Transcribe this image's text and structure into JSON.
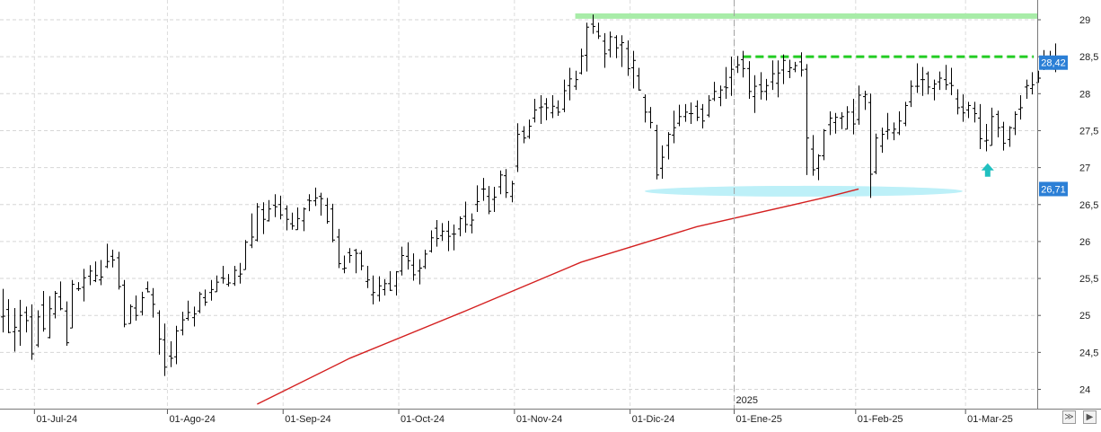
{
  "chart_data": {
    "type": "ohlc",
    "year_marker": "2025",
    "x_tick_labels": [
      "01-Jul-24",
      "01-Ago-24",
      "01-Sep-24",
      "01-Oct-24",
      "01-Nov-24",
      "01-Dic-24",
      "01-Ene-25",
      "01-Feb-25",
      "01-Mar-25"
    ],
    "y_tick_labels": [
      "24",
      "24,5",
      "25",
      "25,5",
      "26",
      "26,5",
      "27",
      "27,5",
      "28",
      "28,5",
      "29"
    ],
    "y_ticks": [
      24,
      24.5,
      25,
      25.5,
      26,
      26.5,
      27,
      27.5,
      28,
      28.5,
      29
    ],
    "ylim": [
      23.8,
      29.25
    ],
    "grid": true,
    "last_price_label": "28,42",
    "moving_average_label": "26,71",
    "colors": {
      "bars": "#000000",
      "moving_average": "#d42020",
      "resistance_top": "#a8eca8",
      "resistance_dashed": "#22cc22",
      "support_zone": "#bdf0f8",
      "arrow": "#20c0c0",
      "price_box": "#2b7fd6"
    },
    "key_levels": {
      "resistance_top": 29.05,
      "resistance_dashed": 28.5,
      "support_zone": 26.68,
      "arrow_level": 26.95
    },
    "moving_average": {
      "name": "",
      "points": [
        [
          44.0,
          23.8
        ],
        [
          60.0,
          24.42
        ],
        [
          80.0,
          25.06
        ],
        [
          100.0,
          25.72
        ],
        [
          120.0,
          26.2
        ],
        [
          138.0,
          26.52
        ],
        [
          143.0,
          26.61
        ],
        [
          148.0,
          26.71
        ]
      ]
    },
    "ohlc": [
      [
        0,
        24.98,
        25.36,
        24.77,
        24.99
      ],
      [
        1,
        25.08,
        25.22,
        24.76,
        24.77
      ],
      [
        2,
        24.78,
        25.1,
        24.51,
        24.84
      ],
      [
        3,
        24.79,
        25.21,
        24.59,
        25.0
      ],
      [
        4,
        25.04,
        25.12,
        24.77,
        24.93
      ],
      [
        5,
        24.98,
        25.15,
        24.4,
        24.48
      ],
      [
        6,
        24.6,
        25.07,
        24.57,
        24.98
      ],
      [
        7,
        25.14,
        25.33,
        24.78,
        24.82
      ],
      [
        8,
        24.7,
        25.26,
        24.69,
        25.09
      ],
      [
        9,
        25.02,
        25.33,
        24.96,
        25.3
      ],
      [
        10,
        25.25,
        25.46,
        25.07,
        25.09
      ],
      [
        11,
        25.06,
        25.19,
        24.59,
        24.63
      ],
      [
        12,
        24.83,
        25.48,
        24.83,
        25.42
      ],
      [
        13,
        25.36,
        25.45,
        25.33,
        25.36
      ],
      [
        14,
        25.38,
        25.63,
        25.19,
        25.51
      ],
      [
        15,
        25.53,
        25.68,
        25.41,
        25.6
      ],
      [
        16,
        25.47,
        25.73,
        25.45,
        25.54
      ],
      [
        17,
        25.48,
        25.75,
        25.41,
        25.52
      ],
      [
        18,
        25.66,
        25.97,
        25.64,
        25.73
      ],
      [
        19,
        25.8,
        25.89,
        25.65,
        25.75
      ],
      [
        20,
        25.78,
        25.86,
        25.35,
        25.39
      ],
      [
        21,
        25.41,
        25.48,
        24.84,
        24.88
      ],
      [
        22,
        24.89,
        25.15,
        24.89,
        25.12
      ],
      [
        23,
        25.1,
        25.27,
        24.93,
        25.0
      ],
      [
        24,
        25.05,
        25.32,
        25.0,
        25.24
      ],
      [
        25,
        25.36,
        25.46,
        25.31,
        25.32
      ],
      [
        26,
        25.28,
        25.37,
        24.97,
        25.15
      ],
      [
        27,
        25.03,
        25.07,
        24.47,
        24.68
      ],
      [
        28,
        24.67,
        24.89,
        24.18,
        24.3
      ],
      [
        29,
        24.45,
        24.65,
        24.3,
        24.42
      ],
      [
        30,
        24.44,
        24.86,
        24.34,
        24.79
      ],
      [
        31,
        24.8,
        25.05,
        24.73,
        24.94
      ],
      [
        32,
        24.96,
        25.2,
        24.93,
        25.04
      ],
      [
        33,
        24.97,
        25.12,
        24.85,
        25.02
      ],
      [
        34,
        25.06,
        25.32,
        25.03,
        25.29
      ],
      [
        35,
        25.24,
        25.35,
        25.13,
        25.18
      ],
      [
        36,
        25.31,
        25.48,
        25.2,
        25.35
      ],
      [
        37,
        25.32,
        25.54,
        25.32,
        25.45
      ],
      [
        38,
        25.51,
        25.67,
        25.43,
        25.5
      ],
      [
        39,
        25.42,
        25.56,
        25.39,
        25.44
      ],
      [
        40,
        25.43,
        25.67,
        25.4,
        25.61
      ],
      [
        41,
        25.53,
        25.71,
        25.43,
        25.56
      ],
      [
        42,
        25.62,
        26.02,
        25.62,
        25.99
      ],
      [
        43,
        25.95,
        26.38,
        25.91,
        26.06
      ],
      [
        44,
        26.02,
        26.52,
        26.0,
        26.47
      ],
      [
        45,
        26.43,
        26.53,
        26.1,
        26.3
      ],
      [
        46,
        26.28,
        26.56,
        26.27,
        26.44
      ],
      [
        47,
        26.49,
        26.64,
        26.33,
        26.47
      ],
      [
        48,
        26.5,
        26.62,
        26.3,
        26.36
      ],
      [
        49,
        26.44,
        26.49,
        26.15,
        26.3
      ],
      [
        50,
        26.24,
        26.39,
        26.16,
        26.21
      ],
      [
        51,
        26.16,
        26.46,
        26.16,
        26.31
      ],
      [
        52,
        26.28,
        26.46,
        26.14,
        26.44
      ],
      [
        53,
        26.56,
        26.64,
        26.41,
        26.55
      ],
      [
        54,
        26.55,
        26.73,
        26.48,
        26.59
      ],
      [
        55,
        26.61,
        26.66,
        26.35,
        26.58
      ],
      [
        56,
        26.49,
        26.59,
        26.24,
        26.27
      ],
      [
        57,
        26.44,
        26.51,
        25.99,
        26.02
      ],
      [
        58,
        26.06,
        26.17,
        25.64,
        25.7
      ],
      [
        59,
        25.63,
        25.81,
        25.57,
        25.64
      ],
      [
        60,
        25.85,
        25.91,
        25.71,
        25.81
      ],
      [
        61,
        25.88,
        25.9,
        25.57,
        25.84
      ],
      [
        62,
        25.84,
        25.88,
        25.61,
        25.67
      ],
      [
        63,
        25.46,
        25.67,
        25.37,
        25.48
      ],
      [
        64,
        25.28,
        25.54,
        25.15,
        25.31
      ],
      [
        65,
        25.27,
        25.53,
        25.19,
        25.4
      ],
      [
        66,
        25.35,
        25.49,
        25.27,
        25.43
      ],
      [
        67,
        25.43,
        25.6,
        25.33,
        25.34
      ],
      [
        68,
        25.4,
        25.6,
        25.27,
        25.59
      ],
      [
        69,
        25.6,
        25.93,
        25.54,
        25.81
      ],
      [
        70,
        25.8,
        25.99,
        25.62,
        25.74
      ],
      [
        71,
        25.68,
        25.84,
        25.47,
        25.55
      ],
      [
        72,
        25.6,
        25.76,
        25.42,
        25.64
      ],
      [
        73,
        25.66,
        25.89,
        25.63,
        25.83
      ],
      [
        74,
        25.87,
        26.15,
        25.85,
        26.05
      ],
      [
        75,
        26.18,
        26.29,
        25.93,
        26.04
      ],
      [
        76,
        26.08,
        26.25,
        26.01,
        26.14
      ],
      [
        77,
        26.14,
        26.28,
        25.87,
        26.07
      ],
      [
        78,
        26.1,
        26.23,
        25.88,
        26.1
      ],
      [
        79,
        26.17,
        26.34,
        26.07,
        26.31
      ],
      [
        80,
        26.34,
        26.54,
        26.12,
        26.23
      ],
      [
        81,
        26.22,
        26.38,
        26.11,
        26.29
      ],
      [
        82,
        26.5,
        26.76,
        26.4,
        26.54
      ],
      [
        83,
        26.71,
        26.86,
        26.55,
        26.71
      ],
      [
        84,
        26.61,
        26.75,
        26.37,
        26.41
      ],
      [
        85,
        26.57,
        26.74,
        26.4,
        26.6
      ],
      [
        86,
        26.74,
        26.96,
        26.64,
        26.9
      ],
      [
        87,
        26.89,
        26.98,
        26.59,
        26.66
      ],
      [
        88,
        26.61,
        26.82,
        26.53,
        26.78
      ],
      [
        89,
        27.02,
        27.6,
        26.94,
        27.45
      ],
      [
        90,
        27.49,
        27.56,
        27.33,
        27.4
      ],
      [
        91,
        27.42,
        27.65,
        27.39,
        27.56
      ],
      [
        92,
        27.67,
        27.93,
        27.61,
        27.78
      ],
      [
        93,
        27.81,
        27.98,
        27.59,
        27.82
      ],
      [
        94,
        27.86,
        27.94,
        27.64,
        27.81
      ],
      [
        95,
        27.74,
        27.98,
        27.67,
        27.83
      ],
      [
        96,
        27.81,
        27.91,
        27.7,
        27.75
      ],
      [
        97,
        27.79,
        28.19,
        27.75,
        28.04
      ],
      [
        98,
        28.11,
        28.35,
        27.91,
        28.2
      ],
      [
        99,
        28.1,
        28.31,
        28.05,
        28.19
      ],
      [
        100,
        28.28,
        28.61,
        28.26,
        28.51
      ],
      [
        101,
        28.52,
        28.96,
        28.3,
        28.9
      ],
      [
        102,
        28.94,
        29.07,
        28.81,
        28.91
      ],
      [
        103,
        28.84,
        28.96,
        28.74,
        28.78
      ],
      [
        104,
        28.71,
        28.82,
        28.35,
        28.54
      ],
      [
        105,
        28.59,
        28.84,
        28.49,
        28.77
      ],
      [
        106,
        28.76,
        28.79,
        28.48,
        28.62
      ],
      [
        107,
        28.66,
        28.79,
        28.36,
        28.69
      ],
      [
        108,
        28.61,
        28.72,
        28.24,
        28.34
      ],
      [
        109,
        28.35,
        28.58,
        28.07,
        28.45
      ],
      [
        110,
        28.24,
        28.35,
        28.04,
        28.05
      ],
      [
        111,
        27.95,
        27.99,
        27.61,
        27.75
      ],
      [
        112,
        27.75,
        27.82,
        27.53,
        27.61
      ],
      [
        113,
        27.5,
        27.58,
        26.84,
        26.9
      ],
      [
        114,
        26.99,
        27.3,
        26.85,
        27.14
      ],
      [
        115,
        27.3,
        27.48,
        27.11,
        27.45
      ],
      [
        116,
        27.44,
        27.77,
        27.33,
        27.54
      ],
      [
        117,
        27.6,
        27.85,
        27.56,
        27.69
      ],
      [
        118,
        27.69,
        27.86,
        27.62,
        27.75
      ],
      [
        119,
        27.73,
        27.88,
        27.59,
        27.73
      ],
      [
        120,
        27.83,
        27.91,
        27.63,
        27.68
      ],
      [
        121,
        27.79,
        27.86,
        27.53,
        27.63
      ],
      [
        122,
        27.71,
        27.98,
        27.68,
        27.91
      ],
      [
        123,
        27.93,
        28.16,
        27.9,
        28.03
      ],
      [
        124,
        27.95,
        28.11,
        27.83,
        28.05
      ],
      [
        125,
        28.09,
        28.36,
        27.93,
        28.08
      ],
      [
        126,
        28.22,
        28.5,
        27.97,
        28.33
      ],
      [
        127,
        28.36,
        28.51,
        28.28,
        28.39
      ],
      [
        128,
        28.46,
        28.58,
        28.22,
        28.34
      ],
      [
        129,
        28.34,
        28.44,
        27.93,
        28.03
      ],
      [
        130,
        27.96,
        28.25,
        27.74,
        28.1
      ],
      [
        131,
        28.12,
        28.29,
        27.92,
        28.03
      ],
      [
        132,
        28.03,
        28.2,
        27.91,
        28.11
      ],
      [
        133,
        28.16,
        28.45,
        28.05,
        28.27
      ],
      [
        134,
        28.14,
        28.45,
        27.95,
        28.28
      ],
      [
        135,
        28.32,
        28.53,
        28.13,
        28.45
      ],
      [
        136,
        28.3,
        28.46,
        28.21,
        28.35
      ],
      [
        137,
        28.33,
        28.43,
        28.29,
        28.38
      ],
      [
        138,
        28.43,
        28.56,
        28.23,
        28.32
      ],
      [
        139,
        28.33,
        28.4,
        26.9,
        27.4
      ],
      [
        140,
        27.25,
        27.44,
        26.89,
        26.97
      ],
      [
        141,
        26.99,
        27.18,
        26.83,
        27.16
      ],
      [
        142,
        27.16,
        27.52,
        27.1,
        27.5
      ],
      [
        143,
        27.58,
        27.76,
        27.44,
        27.67
      ],
      [
        144,
        27.61,
        27.74,
        27.46,
        27.68
      ],
      [
        145,
        27.67,
        27.75,
        27.52,
        27.69
      ],
      [
        146,
        27.52,
        27.83,
        27.52,
        27.75
      ],
      [
        147,
        27.75,
        27.93,
        27.45,
        27.59
      ],
      [
        148,
        27.65,
        28.11,
        27.58,
        27.98
      ],
      [
        149,
        27.96,
        28.04,
        27.78,
        27.99
      ],
      [
        150,
        27.88,
        28.0,
        26.59,
        26.91
      ],
      [
        151,
        26.94,
        27.46,
        26.91,
        27.4
      ],
      [
        152,
        27.29,
        27.54,
        27.2,
        27.45
      ],
      [
        153,
        27.49,
        27.74,
        27.38,
        27.51
      ],
      [
        154,
        27.47,
        27.61,
        27.37,
        27.52
      ],
      [
        155,
        27.47,
        27.76,
        27.44,
        27.63
      ],
      [
        156,
        27.6,
        27.89,
        27.56,
        27.84
      ],
      [
        157,
        27.89,
        28.18,
        27.82,
        28.1
      ],
      [
        158,
        28.1,
        28.41,
        28.01,
        28.1
      ],
      [
        159,
        28.19,
        28.36,
        27.97,
        28.19
      ],
      [
        160,
        28.27,
        28.3,
        27.99,
        28.09
      ],
      [
        161,
        28.07,
        28.19,
        27.91,
        28.13
      ],
      [
        162,
        28.16,
        28.3,
        28.05,
        28.21
      ],
      [
        163,
        28.19,
        28.39,
        28.05,
        28.12
      ],
      [
        164,
        28.14,
        28.35,
        27.98,
        28.11
      ],
      [
        165,
        27.93,
        28.06,
        27.72,
        27.81
      ],
      [
        166,
        27.82,
        27.99,
        27.62,
        27.74
      ],
      [
        167,
        27.78,
        27.89,
        27.67,
        27.84
      ],
      [
        168,
        27.8,
        27.89,
        27.61,
        27.73
      ],
      [
        169,
        27.67,
        27.86,
        27.25,
        27.39
      ],
      [
        170,
        27.36,
        27.59,
        27.22,
        27.37
      ],
      [
        171,
        27.3,
        27.81,
        27.3,
        27.69
      ],
      [
        172,
        27.72,
        27.77,
        27.41,
        27.54
      ],
      [
        173,
        27.55,
        27.62,
        27.23,
        27.33
      ],
      [
        174,
        27.38,
        27.56,
        27.28,
        27.54
      ],
      [
        175,
        27.53,
        27.76,
        27.44,
        27.72
      ],
      [
        176,
        27.79,
        27.98,
        27.65,
        27.81
      ],
      [
        177,
        28.09,
        28.19,
        27.93,
        28.11
      ],
      [
        178,
        28.07,
        28.29,
        27.99,
        28.12
      ],
      [
        179,
        28.15,
        28.31,
        28.15,
        28.21
      ],
      [
        180,
        28.35,
        28.59,
        28.32,
        28.4
      ],
      [
        181,
        28.45,
        28.58,
        28.36,
        28.43
      ],
      [
        182,
        28.33,
        28.68,
        28.29,
        28.41
      ]
    ]
  },
  "navigator": {
    "arrows_icon": "double-chevron-down-icon",
    "end_icon": "end-stop-icon"
  }
}
